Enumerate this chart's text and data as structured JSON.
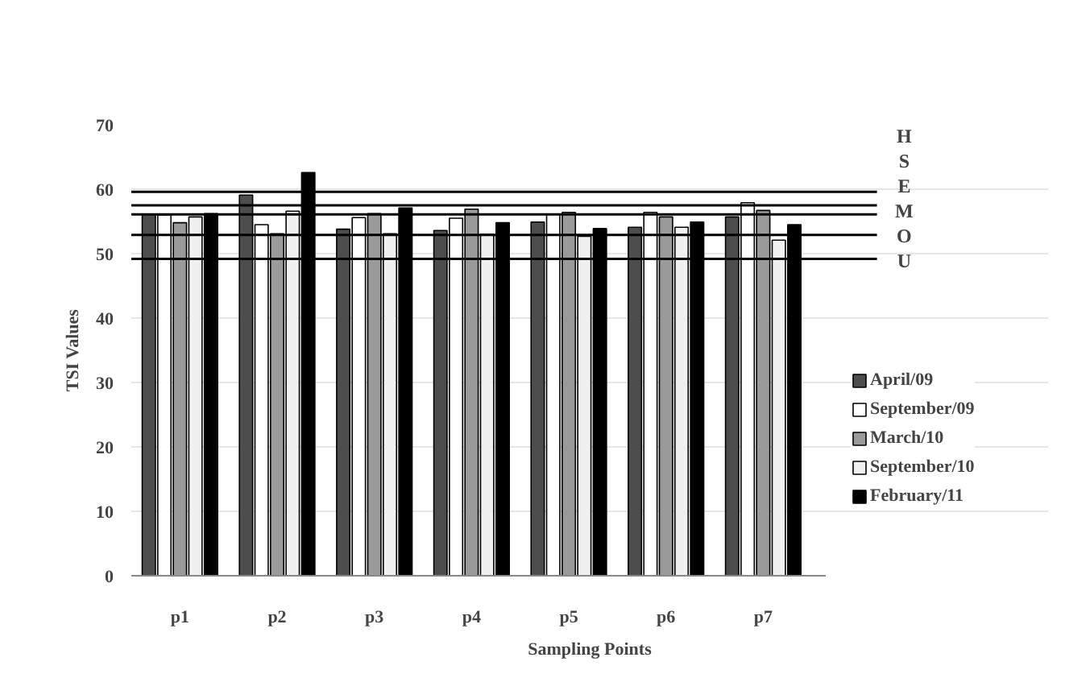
{
  "chart_data": {
    "type": "bar",
    "xlabel": "Sampling Points",
    "ylabel": "TSI Values",
    "categories": [
      "p1",
      "p2",
      "p3",
      "p4",
      "p5",
      "p6",
      "p7"
    ],
    "series": [
      {
        "name": "April/09",
        "color": "#4d4d4d",
        "values": [
          56.1,
          59.1,
          53.8,
          53.6,
          54.9,
          54.1,
          55.7
        ]
      },
      {
        "name": "September/09",
        "color": "#ffffff",
        "values": [
          56.0,
          54.5,
          55.6,
          55.5,
          56.1,
          56.4,
          57.9
        ]
      },
      {
        "name": "March/10",
        "color": "#9a9a9a",
        "values": [
          54.8,
          53.1,
          56.2,
          56.9,
          56.4,
          55.7,
          56.7
        ]
      },
      {
        "name": "September/10",
        "color": "#f0f0f0",
        "values": [
          55.7,
          56.6,
          53.1,
          53.0,
          52.7,
          54.1,
          52.1
        ]
      },
      {
        "name": "February/11",
        "color": "#000000",
        "values": [
          56.2,
          62.6,
          57.1,
          54.8,
          53.9,
          54.9,
          54.5
        ]
      }
    ],
    "ylim": [
      0,
      70
    ],
    "yticks": [
      0,
      10,
      20,
      30,
      40,
      50,
      60,
      70
    ],
    "grid": "y",
    "legend": "right",
    "ref_lines": [
      {
        "axis": "y",
        "value": 59.6,
        "color": "#000000"
      },
      {
        "axis": "y",
        "value": 57.5,
        "color": "#000000"
      },
      {
        "axis": "y",
        "value": 56.1,
        "color": "#000000"
      },
      {
        "axis": "y",
        "value": 52.9,
        "color": "#000000"
      },
      {
        "axis": "y",
        "value": 49.2,
        "color": "#000000"
      }
    ],
    "annotations": [
      "H",
      "S",
      "E",
      "M",
      "O",
      "U"
    ]
  }
}
